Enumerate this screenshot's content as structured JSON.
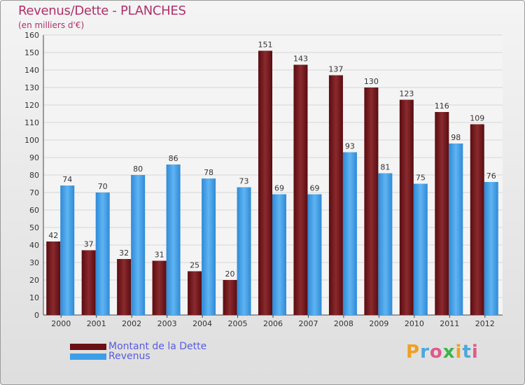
{
  "chart_data": {
    "type": "bar",
    "title": "Revenus/Dette - PLANCHES",
    "subtitle": "(en milliers d'€)",
    "categories": [
      "2000",
      "2001",
      "2002",
      "2003",
      "2004",
      "2005",
      "2006",
      "2007",
      "2008",
      "2009",
      "2010",
      "2011",
      "2012"
    ],
    "series": [
      {
        "name": "Montant de la Dette",
        "values": [
          42,
          37,
          32,
          31,
          25,
          20,
          151,
          143,
          137,
          130,
          123,
          116,
          109
        ],
        "color": "#7a1a1e"
      },
      {
        "name": "Revenus",
        "values": [
          74,
          70,
          80,
          86,
          78,
          73,
          69,
          69,
          93,
          81,
          75,
          98,
          76
        ],
        "color": "#3d9ee8"
      }
    ],
    "ylim": [
      0,
      160
    ],
    "yticks": [
      0,
      10,
      20,
      30,
      40,
      50,
      60,
      70,
      80,
      90,
      100,
      110,
      120,
      130,
      140,
      150,
      160
    ],
    "grid": true,
    "legend": "bottom-left"
  },
  "logo": {
    "letters": [
      "P",
      "r",
      "o",
      "x",
      "i",
      "t",
      "i"
    ],
    "colors": [
      "#f0a020",
      "#4aa8e0",
      "#e05a8a",
      "#3cb44b",
      "#f0a020",
      "#4aa8e0",
      "#e05a8a"
    ]
  }
}
